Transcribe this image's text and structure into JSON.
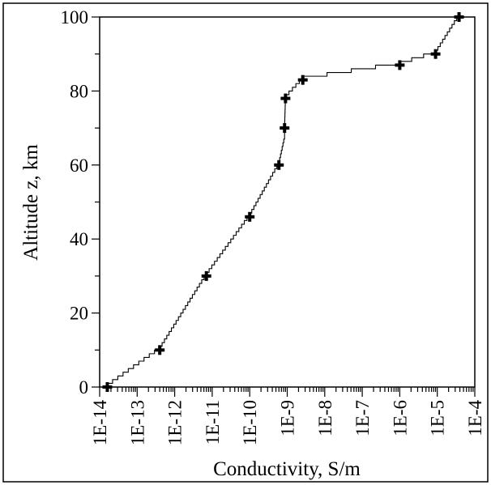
{
  "chart_data": {
    "type": "scatter",
    "title": "",
    "xlabel": "Conductivity,  S/m",
    "ylabel": "Altitude z,  km",
    "x_scale": "log",
    "xlim": [
      1e-14,
      0.0001
    ],
    "ylim": [
      0,
      100
    ],
    "x_tick_labels": [
      "1E-14",
      "1E-13",
      "1E-12",
      "1E-11",
      "1E-10",
      "1E-9",
      "1E-8",
      "1E-7",
      "1E-6",
      "1E-5",
      "1E-4"
    ],
    "y_tick_labels": [
      "0",
      "20",
      "40",
      "60",
      "80",
      "100"
    ],
    "grid": false,
    "legend": "none",
    "series": [
      {
        "marker": "plus",
        "points": [
          {
            "x": 1.6e-14,
            "y": 0
          },
          {
            "x": 4e-13,
            "y": 10
          },
          {
            "x": 7e-12,
            "y": 30
          },
          {
            "x": 1e-10,
            "y": 46
          },
          {
            "x": 6e-10,
            "y": 60
          },
          {
            "x": 8.5e-10,
            "y": 70
          },
          {
            "x": 9e-10,
            "y": 78
          },
          {
            "x": 2.6e-09,
            "y": 83
          },
          {
            "x": 1e-06,
            "y": 87
          },
          {
            "x": 9e-06,
            "y": 90
          },
          {
            "x": 3.8e-05,
            "y": 100
          }
        ]
      },
      {
        "style": "staircase-line",
        "points": [
          {
            "x": 1.6e-14,
            "y": 0
          },
          {
            "x": 4e-13,
            "y": 10
          },
          {
            "x": 7e-12,
            "y": 30
          },
          {
            "x": 1e-10,
            "y": 46
          },
          {
            "x": 6e-10,
            "y": 60
          },
          {
            "x": 8.5e-10,
            "y": 67
          },
          {
            "x": 8.5e-10,
            "y": 70
          },
          {
            "x": 9e-10,
            "y": 78
          },
          {
            "x": 2.6e-09,
            "y": 83
          },
          {
            "x": 1e-06,
            "y": 87
          },
          {
            "x": 9e-06,
            "y": 90
          },
          {
            "x": 3.8e-05,
            "y": 100
          }
        ]
      }
    ]
  }
}
